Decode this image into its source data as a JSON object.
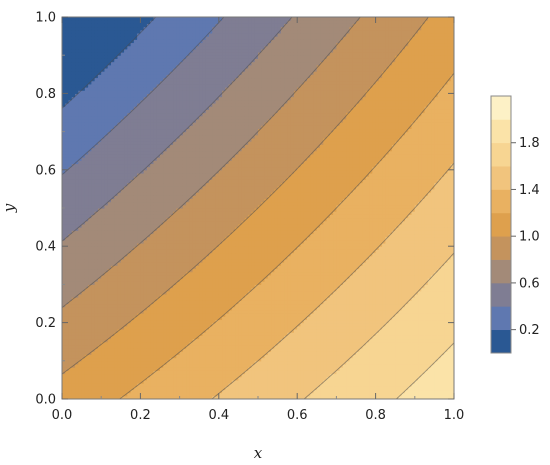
{
  "chart_data": {
    "type": "heatmap",
    "subtype": "contour",
    "title": "",
    "xlabel": "x",
    "ylabel": "y",
    "xlim": [
      0,
      1
    ],
    "ylim": [
      0,
      1
    ],
    "x_ticks": [
      "0.0",
      "0.2",
      "0.4",
      "0.6",
      "0.8",
      "1.0"
    ],
    "y_ticks": [
      "0.0",
      "0.2",
      "0.4",
      "0.6",
      "0.8",
      "1.0"
    ],
    "levels": [
      0,
      0.2,
      0.4,
      0.6,
      0.8,
      1.0,
      1.2,
      1.4,
      1.6,
      1.8,
      2.0
    ],
    "field_samples": [
      {
        "x": 0.0,
        "y": 1.0,
        "value": 0.05
      },
      {
        "x": 0.0,
        "y": 0.0,
        "value": 1.0
      },
      {
        "x": 1.0,
        "y": 1.0,
        "value": 1.0
      },
      {
        "x": 1.0,
        "y": 0.0,
        "value": 1.95
      }
    ],
    "colorbar": {
      "placement": "right",
      "tick_labels": [
        "0.2",
        "0.6",
        "1.0",
        "1.4",
        "1.8"
      ],
      "colors": [
        "#2a5893",
        "#5f78b0",
        "#7f7d93",
        "#a38a78",
        "#c4935d",
        "#dea04d",
        "#e9b161",
        "#f1c47d",
        "#f7d592",
        "#fbe3a8",
        "#fdf1c6"
      ]
    },
    "grid": false
  }
}
